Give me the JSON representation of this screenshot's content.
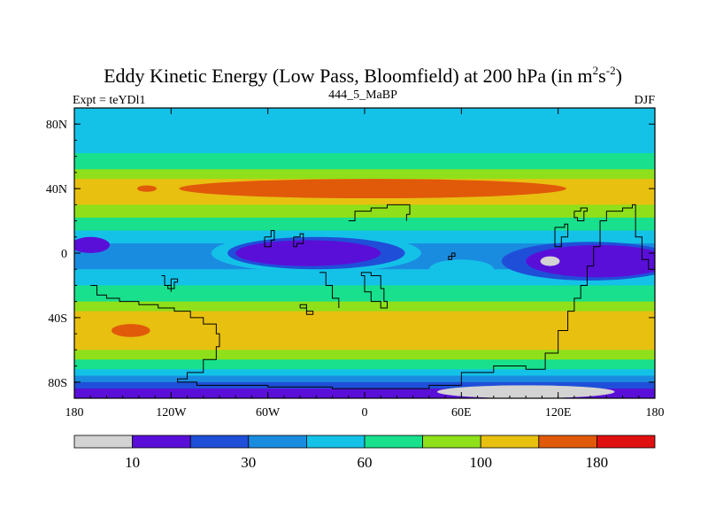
{
  "chart_data": {
    "type": "heatmap",
    "title_main": "Eddy Kinetic Energy (Low Pass, Bloomfield) at 200 hPa (in m",
    "title_sup1": "2",
    "title_mid": "s",
    "title_sup2": "-2",
    "title_end": ")",
    "subtitle_left": "Expt = teYDl1",
    "subtitle_center": "444_5_MaBP",
    "subtitle_right": "DJF",
    "xlim": [
      -180,
      180
    ],
    "ylim": [
      -90,
      90
    ],
    "x_ticks": [
      {
        "value": -180,
        "label": "180"
      },
      {
        "value": -120,
        "label": "120W"
      },
      {
        "value": -60,
        "label": "60W"
      },
      {
        "value": 0,
        "label": "0"
      },
      {
        "value": 60,
        "label": "60E"
      },
      {
        "value": 120,
        "label": "120E"
      },
      {
        "value": 180,
        "label": "180"
      }
    ],
    "y_ticks": [
      {
        "value": 80,
        "label": "80N"
      },
      {
        "value": 40,
        "label": "40N"
      },
      {
        "value": 0,
        "label": "0"
      },
      {
        "value": -40,
        "label": "40S"
      },
      {
        "value": -80,
        "label": "80S"
      }
    ],
    "levels": [
      {
        "color": "#d3d3d3"
      },
      {
        "color": "#5a0fd8"
      },
      {
        "color": "#1f4fd8"
      },
      {
        "color": "#1a8ce0"
      },
      {
        "color": "#14c2e8"
      },
      {
        "color": "#18e08c"
      },
      {
        "color": "#8fe01a"
      },
      {
        "color": "#e8c010"
      },
      {
        "color": "#e05a0a"
      },
      {
        "color": "#e01010"
      }
    ],
    "colorbar_labels": [
      {
        "after_box": 1,
        "label": "10"
      },
      {
        "after_box": 3,
        "label": "30"
      },
      {
        "after_box": 5,
        "label": "60"
      },
      {
        "after_box": 7,
        "label": "100"
      },
      {
        "after_box": 9,
        "label": "180"
      }
    ],
    "bands": [
      {
        "lat": [
          80,
          90
        ],
        "level": 4
      },
      {
        "lat": [
          62,
          80
        ],
        "level": 4
      },
      {
        "lat": [
          52,
          62
        ],
        "level": 5
      },
      {
        "lat": [
          46,
          52
        ],
        "level": 6
      },
      {
        "lat": [
          30,
          46
        ],
        "level": 7
      },
      {
        "lat": [
          22,
          30
        ],
        "level": 6
      },
      {
        "lat": [
          14,
          22
        ],
        "level": 5
      },
      {
        "lat": [
          6,
          14
        ],
        "level": 4
      },
      {
        "lat": [
          -10,
          6
        ],
        "level": 3
      },
      {
        "lat": [
          -20,
          -10
        ],
        "level": 4
      },
      {
        "lat": [
          -30,
          -20
        ],
        "level": 5
      },
      {
        "lat": [
          -36,
          -30
        ],
        "level": 6
      },
      {
        "lat": [
          -60,
          -36
        ],
        "level": 7
      },
      {
        "lat": [
          -66,
          -60
        ],
        "level": 6
      },
      {
        "lat": [
          -72,
          -66
        ],
        "level": 5
      },
      {
        "lat": [
          -76,
          -72
        ],
        "level": 4
      },
      {
        "lat": [
          -80,
          -76
        ],
        "level": 3
      },
      {
        "lat": [
          -84,
          -80
        ],
        "level": 2
      },
      {
        "lat": [
          -90,
          -84
        ],
        "level": 1
      }
    ],
    "blobs": [
      {
        "lon": 5,
        "lat": 40,
        "rlon": 120,
        "rlat": 6,
        "level": 8
      },
      {
        "lon": -135,
        "lat": 40,
        "rlon": 6,
        "rlat": 2,
        "level": 8
      },
      {
        "lon": -145,
        "lat": -48,
        "rlon": 12,
        "rlat": 4,
        "level": 8
      },
      {
        "lon": -30,
        "lat": 0,
        "rlon": 65,
        "rlat": 12,
        "level": 4
      },
      {
        "lon": -30,
        "lat": 0,
        "rlon": 55,
        "rlat": 10,
        "level": 2
      },
      {
        "lon": -35,
        "lat": 0,
        "rlon": 45,
        "rlat": 8,
        "level": 1
      },
      {
        "lon": 140,
        "lat": -5,
        "rlon": 55,
        "rlat": 12,
        "level": 2
      },
      {
        "lon": 145,
        "lat": -5,
        "rlon": 45,
        "rlat": 10,
        "level": 1
      },
      {
        "lon": 115,
        "lat": -5,
        "rlon": 6,
        "rlat": 3,
        "level": 0
      },
      {
        "lon": -170,
        "lat": 5,
        "rlon": 12,
        "rlat": 5,
        "level": 1
      },
      {
        "lon": 60,
        "lat": -10,
        "rlon": 20,
        "rlat": 6,
        "level": 4
      },
      {
        "lon": 100,
        "lat": -86,
        "rlon": 55,
        "rlat": 4,
        "level": 0
      }
    ],
    "coastlines": [
      [
        [
          -170,
          -20
        ],
        [
          -166,
          -26
        ],
        [
          -160,
          -28
        ],
        [
          -152,
          -30
        ],
        [
          -140,
          -32
        ],
        [
          -128,
          -34
        ],
        [
          -118,
          -36
        ],
        [
          -108,
          -40
        ],
        [
          -100,
          -44
        ],
        [
          -92,
          -50
        ],
        [
          -90,
          -58
        ],
        [
          -92,
          -66
        ],
        [
          -100,
          -74
        ],
        [
          -110,
          -78
        ],
        [
          -116,
          -80
        ],
        [
          -104,
          -82
        ],
        [
          -80,
          -82
        ],
        [
          -60,
          -83
        ],
        [
          -20,
          -84
        ],
        [
          20,
          -84
        ],
        [
          40,
          -82
        ],
        [
          60,
          -74
        ],
        [
          80,
          -70
        ],
        [
          100,
          -72
        ],
        [
          112,
          -62
        ],
        [
          120,
          -48
        ],
        [
          126,
          -36
        ],
        [
          130,
          -28
        ],
        [
          134,
          -20
        ],
        [
          138,
          -8
        ],
        [
          142,
          4
        ],
        [
          146,
          20
        ],
        [
          150,
          26
        ],
        [
          160,
          28
        ],
        [
          166,
          30
        ],
        [
          168,
          10
        ],
        [
          172,
          -4
        ],
        [
          176,
          -10
        ],
        [
          180,
          -14
        ]
      ],
      [
        [
          -126,
          -14
        ],
        [
          -124,
          -20
        ],
        [
          -120,
          -24
        ]
      ],
      [
        [
          -120,
          -16
        ],
        [
          -116,
          -18
        ],
        [
          -118,
          -22
        ],
        [
          -122,
          -20
        ],
        [
          -120,
          -16
        ]
      ],
      [
        [
          -28,
          -12
        ],
        [
          -24,
          -20
        ],
        [
          -20,
          -28
        ],
        [
          -16,
          -34
        ]
      ],
      [
        [
          -40,
          -34
        ],
        [
          -36,
          -38
        ],
        [
          -32,
          -36
        ],
        [
          -36,
          -32
        ],
        [
          -40,
          -34
        ]
      ],
      [
        [
          -2,
          -14
        ],
        [
          0,
          -24
        ],
        [
          4,
          -30
        ],
        [
          10,
          -34
        ],
        [
          14,
          -30
        ],
        [
          12,
          -22
        ],
        [
          10,
          -14
        ],
        [
          4,
          -12
        ],
        [
          -2,
          -14
        ]
      ],
      [
        [
          -10,
          20
        ],
        [
          -6,
          26
        ],
        [
          4,
          28
        ],
        [
          14,
          30
        ],
        [
          24,
          30
        ],
        [
          28,
          24
        ],
        [
          26,
          20
        ]
      ],
      [
        [
          -62,
          10
        ],
        [
          -58,
          14
        ],
        [
          -56,
          8
        ],
        [
          -58,
          4
        ],
        [
          -62,
          10
        ]
      ],
      [
        [
          -44,
          10
        ],
        [
          -40,
          12
        ],
        [
          -38,
          6
        ],
        [
          -42,
          4
        ],
        [
          -44,
          10
        ]
      ],
      [
        [
          52,
          -2
        ],
        [
          56,
          0
        ],
        [
          54,
          -4
        ],
        [
          52,
          -2
        ]
      ],
      [
        [
          118,
          16
        ],
        [
          124,
          18
        ],
        [
          126,
          10
        ],
        [
          122,
          4
        ],
        [
          118,
          8
        ],
        [
          118,
          16
        ]
      ],
      [
        [
          130,
          26
        ],
        [
          134,
          28
        ],
        [
          138,
          26
        ],
        [
          136,
          20
        ],
        [
          132,
          22
        ],
        [
          130,
          26
        ]
      ]
    ]
  }
}
